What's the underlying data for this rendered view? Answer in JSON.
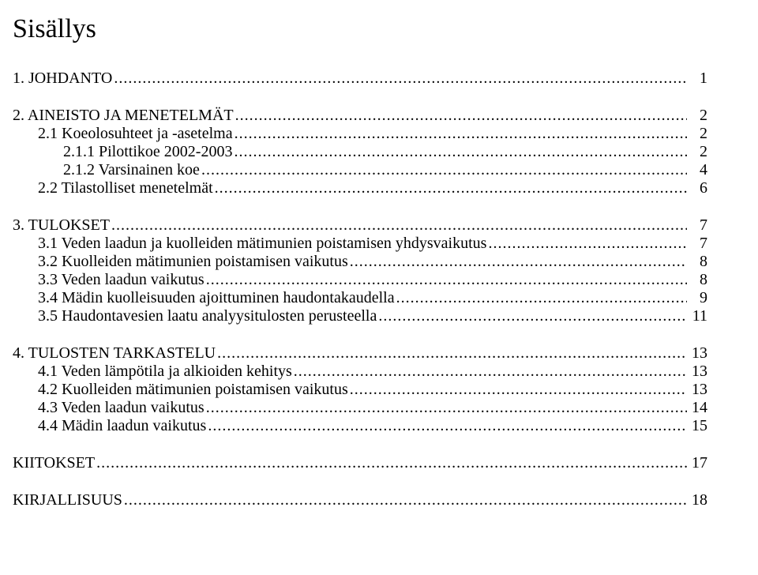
{
  "title": "Sisällys",
  "toc": [
    {
      "type": "item",
      "level": 0,
      "label": "1. JOHDANTO",
      "page": "1"
    },
    {
      "type": "gap"
    },
    {
      "type": "item",
      "level": 0,
      "label": "2. AINEISTO JA MENETELMÄT",
      "page": "2"
    },
    {
      "type": "item",
      "level": 1,
      "label": "2.1 Koeolosuhteet ja -asetelma",
      "page": "2"
    },
    {
      "type": "item",
      "level": 2,
      "label": "2.1.1 Pilottikoe 2002-2003",
      "page": "2"
    },
    {
      "type": "item",
      "level": 2,
      "label": "2.1.2 Varsinainen koe",
      "page": "4"
    },
    {
      "type": "item",
      "level": 1,
      "label": "2.2 Tilastolliset menetelmät",
      "page": "6"
    },
    {
      "type": "gap"
    },
    {
      "type": "item",
      "level": 0,
      "label": "3. TULOKSET",
      "page": "7"
    },
    {
      "type": "item",
      "level": 1,
      "label": "3.1 Veden laadun ja kuolleiden  mätimunien poistamisen yhdysvaikutus",
      "page": "7"
    },
    {
      "type": "item",
      "level": 1,
      "label": "3.2 Kuolleiden mätimunien poistamisen vaikutus",
      "page": "8"
    },
    {
      "type": "item",
      "level": 1,
      "label": "3.3 Veden laadun vaikutus",
      "page": "8"
    },
    {
      "type": "item",
      "level": 1,
      "label": "3.4 Mädin kuolleisuuden ajoittuminen haudontakaudella",
      "page": "9"
    },
    {
      "type": "item",
      "level": 1,
      "label": "3.5 Haudontavesien laatu analyysitulosten perusteella",
      "page": "11"
    },
    {
      "type": "gap"
    },
    {
      "type": "item",
      "level": 0,
      "label": "4. TULOSTEN TARKASTELU",
      "page": "13"
    },
    {
      "type": "item",
      "level": 1,
      "label": "4.1 Veden lämpötila ja alkioiden kehitys",
      "page": "13"
    },
    {
      "type": "item",
      "level": 1,
      "label": "4.2 Kuolleiden mätimunien poistamisen vaikutus",
      "page": "13"
    },
    {
      "type": "item",
      "level": 1,
      "label": "4.3 Veden laadun vaikutus",
      "page": "14"
    },
    {
      "type": "item",
      "level": 1,
      "label": "4.4 Mädin laadun vaikutus",
      "page": "15"
    },
    {
      "type": "gap"
    },
    {
      "type": "item",
      "level": 0,
      "label": "KIITOKSET",
      "page": "17"
    },
    {
      "type": "gap"
    },
    {
      "type": "item",
      "level": 0,
      "label": "KIRJALLISUUS",
      "page": "18"
    }
  ]
}
